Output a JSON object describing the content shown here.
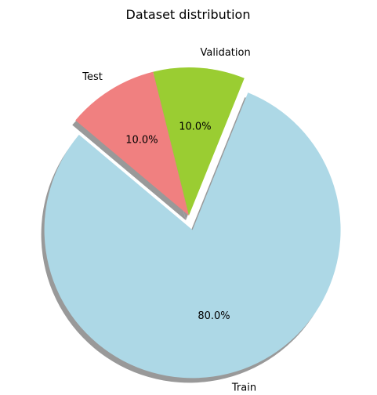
{
  "chart_data": {
    "type": "pie",
    "title": "Dataset distribution",
    "categories": [
      "Train",
      "Validation",
      "Test"
    ],
    "values": [
      80,
      10,
      10
    ],
    "percent_labels": [
      "80.0%",
      "10.0%",
      "10.0%"
    ],
    "colors": [
      "#add8e6",
      "#9acd32",
      "#f08080"
    ],
    "explode": [
      0.1,
      0,
      0
    ],
    "start_angle_deg": 140,
    "shadow": true,
    "shadow_color": "#999999",
    "direction": "counterclockwise"
  }
}
